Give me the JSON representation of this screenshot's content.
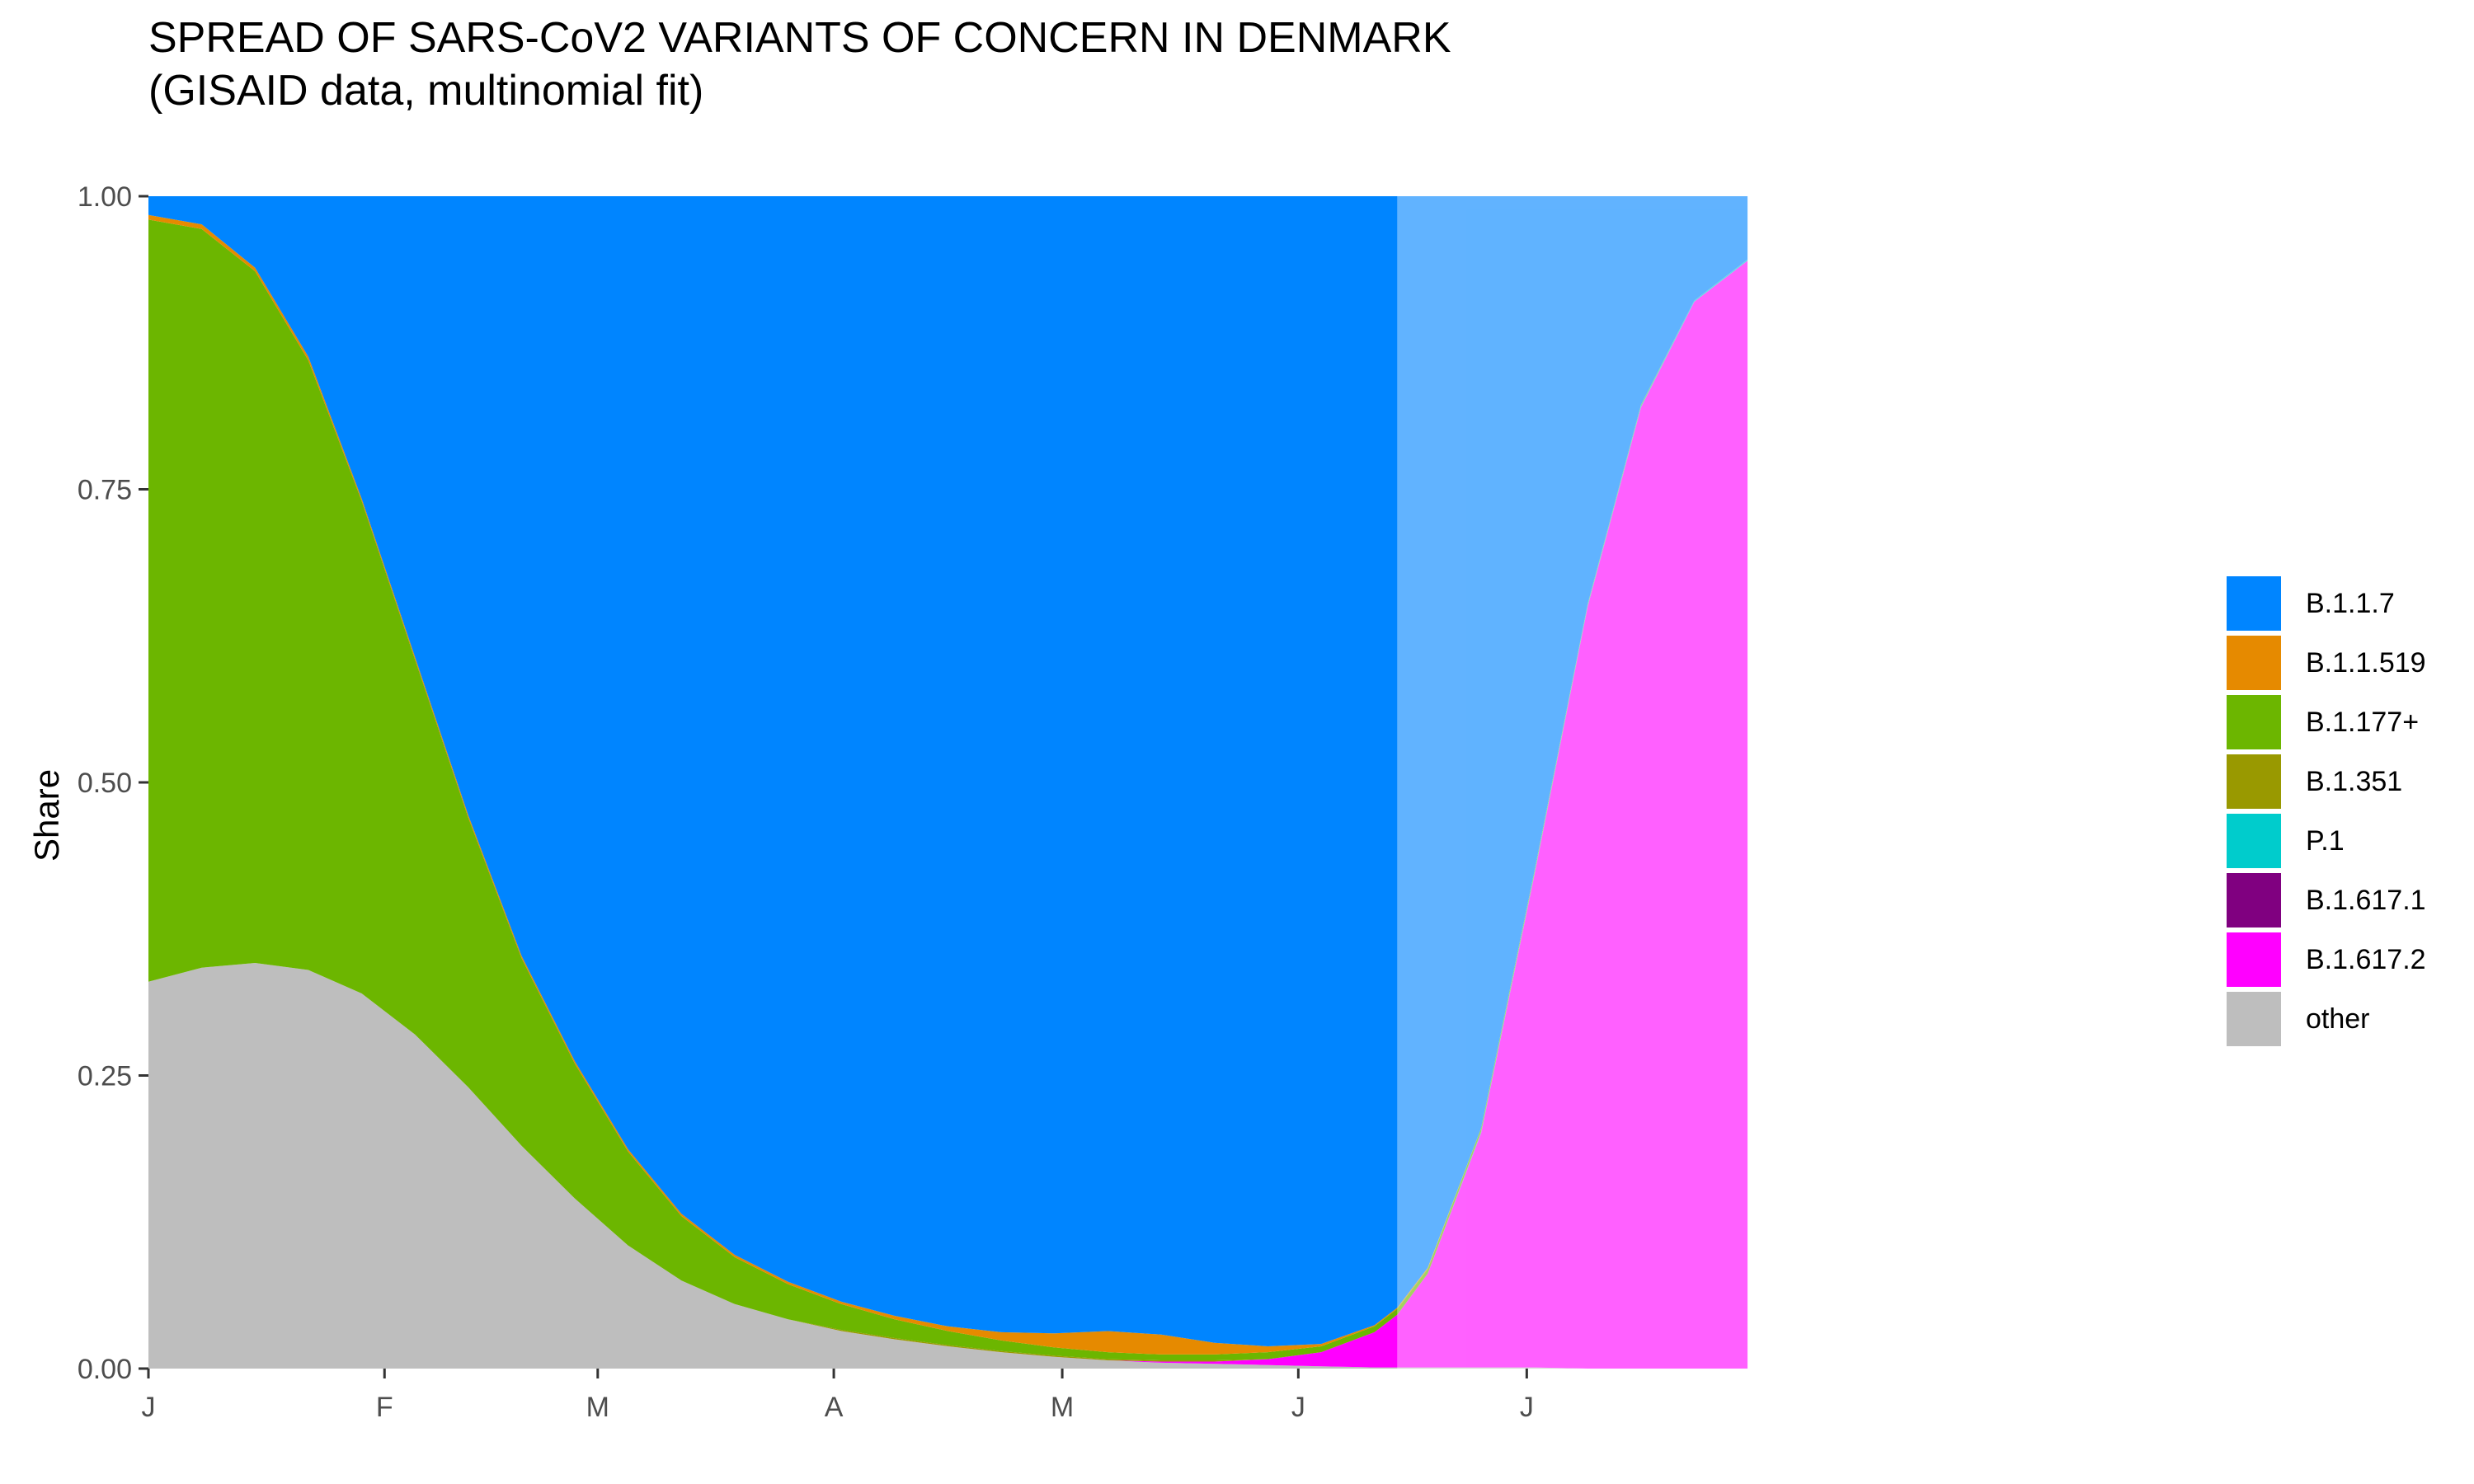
{
  "title": "SPREAD OF SARS-CoV2 VARIANTS OF CONCERN IN DENMARK\n(GISAID data, multinomial fit)",
  "chart_data": {
    "type": "area",
    "stacked": true,
    "title": "SPREAD OF SARS-CoV2 VARIANTS OF CONCERN IN DENMARK",
    "subtitle": "(GISAID data, multinomial fit)",
    "xlabel": "",
    "ylabel": "Share",
    "ylim": [
      0,
      1
    ],
    "yticks": [
      "0.00",
      "0.25",
      "0.50",
      "0.75",
      "1.00"
    ],
    "xticks": [
      {
        "label": "J",
        "date": "2021-01-01"
      },
      {
        "label": "F",
        "date": "2021-02-01"
      },
      {
        "label": "M",
        "date": "2021-03-01"
      },
      {
        "label": "A",
        "date": "2021-04-01"
      },
      {
        "label": "M",
        "date": "2021-05-01"
      },
      {
        "label": "J",
        "date": "2021-06-01"
      },
      {
        "label": "J",
        "date": "2021-07-01"
      }
    ],
    "x": [
      "2021-01-01",
      "2021-01-08",
      "2021-01-15",
      "2021-01-22",
      "2021-01-29",
      "2021-02-05",
      "2021-02-12",
      "2021-02-19",
      "2021-02-26",
      "2021-03-05",
      "2021-03-12",
      "2021-03-19",
      "2021-03-26",
      "2021-04-02",
      "2021-04-09",
      "2021-04-16",
      "2021-04-23",
      "2021-04-30",
      "2021-05-07",
      "2021-05-14",
      "2021-05-21",
      "2021-05-28",
      "2021-06-04",
      "2021-06-11",
      "2021-06-14",
      "2021-06-18",
      "2021-06-25",
      "2021-07-02",
      "2021-07-09",
      "2021-07-16",
      "2021-07-23",
      "2021-07-30"
    ],
    "forecast_start": "2021-06-14",
    "legend_position": "right",
    "series": [
      {
        "name": "other",
        "color": "#bebebe",
        "values": [
          0.33,
          0.342,
          0.346,
          0.34,
          0.32,
          0.285,
          0.24,
          0.19,
          0.145,
          0.105,
          0.075,
          0.055,
          0.042,
          0.032,
          0.025,
          0.019,
          0.014,
          0.01,
          0.007,
          0.005,
          0.004,
          0.003,
          0.002,
          0.001,
          0.001,
          0.001,
          0.001,
          0.001,
          0.0,
          0.0,
          0.0,
          0.0
        ]
      },
      {
        "name": "B.1.617.2",
        "color": "#ff00ff",
        "values": [
          0.0,
          0.0,
          0.0,
          0.0,
          0.0,
          0.0,
          0.0,
          0.0,
          0.0,
          0.0,
          0.0,
          0.0,
          0.0,
          0.0,
          0.0,
          0.0,
          0.0,
          0.0,
          0.0,
          0.001,
          0.002,
          0.005,
          0.012,
          0.03,
          0.045,
          0.08,
          0.2,
          0.42,
          0.65,
          0.82,
          0.91,
          0.945
        ]
      },
      {
        "name": "B.1.617.1",
        "color": "#800080",
        "values": [
          0.0,
          0.0,
          0.0,
          0.0,
          0.0,
          0.0,
          0.0,
          0.0,
          0.0,
          0.0,
          0.0,
          0.0,
          0.0,
          0.0,
          0.0,
          0.0,
          0.0,
          0.0,
          0.0,
          0.0,
          0.0,
          0.0,
          0.0,
          0.0,
          0.0,
          0.0,
          0.0,
          0.0,
          0.0,
          0.0,
          0.0,
          0.0
        ]
      },
      {
        "name": "P.1",
        "color": "#00cccc",
        "values": [
          0.0,
          0.0,
          0.0,
          0.0,
          0.0,
          0.0,
          0.0,
          0.0,
          0.0,
          0.0,
          0.0,
          0.0,
          0.0,
          0.0,
          0.0,
          0.0,
          0.0,
          0.0,
          0.0,
          0.0,
          0.0,
          0.0,
          0.0,
          0.0,
          0.0,
          0.0,
          0.001,
          0.001,
          0.001,
          0.001,
          0.001,
          0.001
        ]
      },
      {
        "name": "B.1.351",
        "color": "#999900",
        "values": [
          0.0,
          0.0,
          0.0,
          0.0,
          0.0,
          0.0,
          0.0,
          0.0,
          0.0,
          0.0,
          0.0,
          0.0,
          0.0,
          0.001,
          0.001,
          0.001,
          0.001,
          0.001,
          0.001,
          0.001,
          0.001,
          0.0,
          0.0,
          0.0,
          0.0,
          0.0,
          0.0,
          0.0,
          0.0,
          0.0,
          0.0,
          0.0
        ]
      },
      {
        "name": "B.1.177+",
        "color": "#6cb600",
        "values": [
          0.65,
          0.63,
          0.59,
          0.52,
          0.42,
          0.32,
          0.23,
          0.16,
          0.115,
          0.08,
          0.055,
          0.04,
          0.03,
          0.022,
          0.016,
          0.012,
          0.009,
          0.007,
          0.006,
          0.005,
          0.005,
          0.006,
          0.005,
          0.005,
          0.005,
          0.004,
          0.003,
          0.002,
          0.001,
          0.001,
          0.0,
          0.0
        ]
      },
      {
        "name": "B.1.1.519",
        "color": "#e68a00",
        "values": [
          0.004,
          0.004,
          0.003,
          0.003,
          0.002,
          0.002,
          0.002,
          0.002,
          0.002,
          0.002,
          0.002,
          0.002,
          0.002,
          0.002,
          0.003,
          0.004,
          0.007,
          0.012,
          0.018,
          0.017,
          0.01,
          0.005,
          0.002,
          0.001,
          0.001,
          0.001,
          0.0,
          0.0,
          0.0,
          0.0,
          0.0,
          0.0
        ]
      },
      {
        "name": "B.1.1.7",
        "color": "#0085ff",
        "values": [
          0.016,
          0.024,
          0.061,
          0.137,
          0.258,
          0.393,
          0.528,
          0.648,
          0.738,
          0.813,
          0.868,
          0.903,
          0.926,
          0.943,
          0.955,
          0.964,
          0.969,
          0.97,
          0.968,
          0.971,
          0.978,
          0.981,
          0.981,
          0.963,
          0.948,
          0.914,
          0.795,
          0.576,
          0.348,
          0.178,
          0.089,
          0.054
        ]
      }
    ],
    "legend": [
      "B.1.1.7",
      "B.1.1.519",
      "B.1.177+",
      "B.1.351",
      "P.1",
      "B.1.617.1",
      "B.1.617.2",
      "other"
    ]
  }
}
